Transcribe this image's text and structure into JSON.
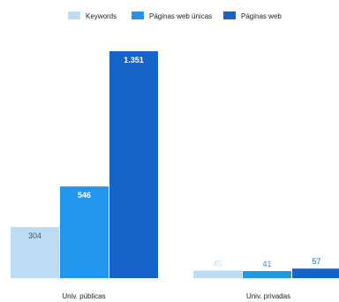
{
  "chart_data": {
    "type": "bar",
    "categories": [
      "Univ. públicas",
      "Univ. privadas"
    ],
    "series": [
      {
        "name": "Keywords",
        "values": [
          304,
          45
        ],
        "labels": [
          "304",
          "45"
        ],
        "color": "#bcdcf6",
        "label_color": "#555555",
        "label_color_outside": "#bcdcf6"
      },
      {
        "name": "Páginas web únicas",
        "values": [
          546,
          41
        ],
        "labels": [
          "546",
          "41"
        ],
        "color": "#2196ea",
        "label_color": "#ffffff",
        "label_color_outside": "#2196ea"
      },
      {
        "name": "Páginas web",
        "values": [
          1351,
          57
        ],
        "labels": [
          "1.351",
          "57"
        ],
        "color": "#1565c8",
        "label_color": "#ffffff",
        "label_color_outside": "#1565c8"
      }
    ],
    "title": "",
    "xlabel": "",
    "ylabel": "",
    "ylim": [
      0,
      1351
    ],
    "grid": false,
    "legend": "top-center"
  }
}
